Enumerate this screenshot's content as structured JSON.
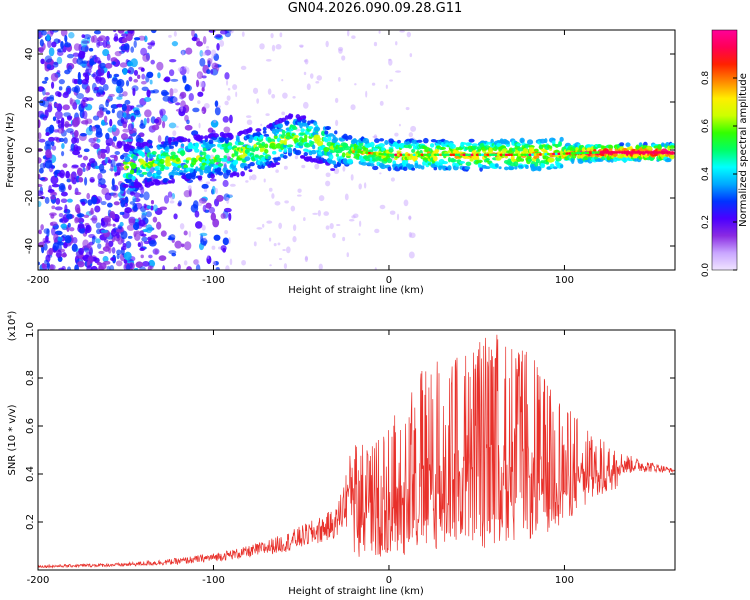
{
  "title": "GN04.2026.090.09.28.G11",
  "chart_data": [
    {
      "type": "heatmap",
      "title": "GN04.2026.090.09.28.G11",
      "xlabel": "Height of straight line (km)",
      "ylabel": "Frequency (Hz)",
      "xlim": [
        -200,
        163
      ],
      "ylim": [
        -50,
        50
      ],
      "xticks": [
        -200,
        -100,
        0,
        100
      ],
      "yticks": [
        -40,
        -20,
        0,
        20,
        40
      ],
      "colorbar": {
        "label": "Normalized spectral amplitude",
        "range": [
          0,
          1
        ],
        "ticks": [
          "0.0",
          "0.2",
          "0.4",
          "0.6",
          "0.8"
        ],
        "colors": [
          "#f0e4ff",
          "#c9a6ff",
          "#8a2be2",
          "#4b00ff",
          "#0033ff",
          "#00a8ff",
          "#00ffff",
          "#00ff66",
          "#33ff00",
          "#ccff00",
          "#ffee00",
          "#ff8800",
          "#ff2200",
          "#ff0055",
          "#ff0099"
        ]
      },
      "ridge_frequency_hz": [
        {
          "x": -150,
          "f": -7
        },
        {
          "x": -120,
          "f": -4
        },
        {
          "x": -90,
          "f": -2
        },
        {
          "x": -70,
          "f": 1
        },
        {
          "x": -55,
          "f": 6
        },
        {
          "x": -40,
          "f": 4
        },
        {
          "x": -30,
          "f": 0
        },
        {
          "x": 0,
          "f": -2
        },
        {
          "x": 40,
          "f": -2
        },
        {
          "x": 80,
          "f": -2
        },
        {
          "x": 120,
          "f": -1
        },
        {
          "x": 160,
          "f": -1
        }
      ]
    },
    {
      "type": "line",
      "xlabel": "Height of straight line (km)",
      "ylabel": "SNR (10 * v/v)",
      "y_multiplier": "(x10⁴)",
      "xlim": [
        -200,
        163
      ],
      "ylim": [
        0,
        1.0
      ],
      "xticks": [
        -200,
        -100,
        0,
        100
      ],
      "yticks": [
        0.2,
        0.4,
        0.6,
        0.8,
        1.0
      ],
      "color": "#e8302a",
      "envelope": {
        "x": [
          -200,
          -150,
          -120,
          -100,
          -80,
          -60,
          -40,
          -30,
          -20,
          -10,
          0,
          10,
          20,
          30,
          40,
          50,
          60,
          70,
          80,
          90,
          100,
          110,
          120,
          130,
          140,
          150,
          163
        ],
        "max": [
          0.02,
          0.03,
          0.05,
          0.07,
          0.1,
          0.15,
          0.22,
          0.26,
          0.55,
          0.52,
          0.62,
          0.72,
          0.85,
          0.9,
          0.93,
          0.95,
          1.0,
          0.93,
          0.92,
          0.78,
          0.7,
          0.62,
          0.55,
          0.5,
          0.47,
          0.45,
          0.42
        ],
        "min": [
          0.005,
          0.008,
          0.01,
          0.02,
          0.03,
          0.04,
          0.06,
          0.08,
          0.05,
          0.05,
          0.06,
          0.06,
          0.08,
          0.08,
          0.1,
          0.08,
          0.1,
          0.12,
          0.12,
          0.15,
          0.2,
          0.25,
          0.3,
          0.34,
          0.38,
          0.39,
          0.4
        ]
      }
    }
  ]
}
